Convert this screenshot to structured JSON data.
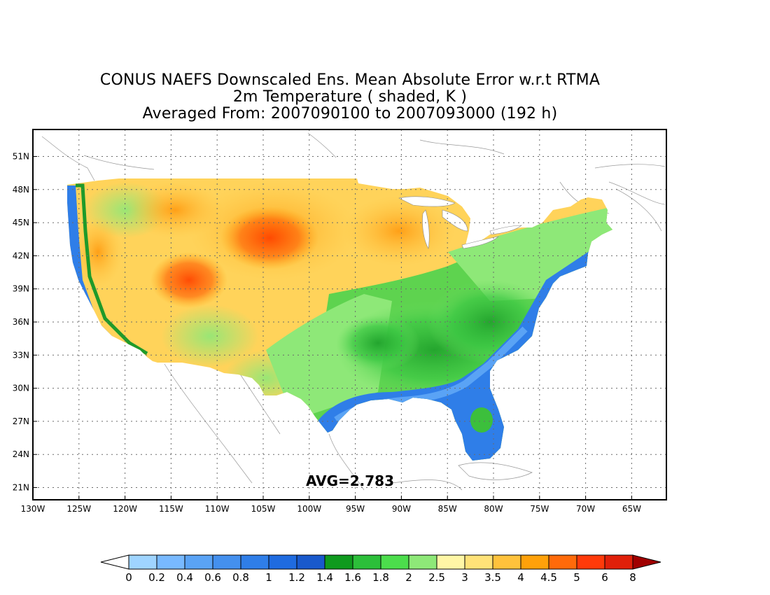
{
  "title": {
    "line1": "CONUS NAEFS Downscaled Ens. Mean Absolute Error w.r.t RTMA",
    "line2": "2m Temperature ( shaded, K )",
    "line3": "Averaged From: 2007090100 to 2007093000 (192 h)"
  },
  "annotation": "AVG=2.783",
  "map": {
    "lat_labels": [
      "51N",
      "48N",
      "45N",
      "42N",
      "39N",
      "36N",
      "33N",
      "30N",
      "27N",
      "24N",
      "21N"
    ],
    "lon_labels": [
      "130W",
      "125W",
      "120W",
      "115W",
      "110W",
      "105W",
      "100W",
      "95W",
      "90W",
      "85W",
      "80W",
      "75W",
      "70W",
      "65W"
    ]
  },
  "colorbar": {
    "labels": [
      "0",
      "0.2",
      "0.4",
      "0.6",
      "0.8",
      "1",
      "1.2",
      "1.4",
      "1.6",
      "1.8",
      "2",
      "2.5",
      "3",
      "3.5",
      "4",
      "4.5",
      "5",
      "6",
      "8"
    ],
    "under_color": "#ffffff",
    "over_color": "#a00000",
    "colors": [
      "#9fd4ff",
      "#78b9ff",
      "#5aa3f5",
      "#4490ee",
      "#2f7ee8",
      "#1f6be0",
      "#1959cc",
      "#0f9a1e",
      "#2cbf3a",
      "#4cdd4c",
      "#8ee878",
      "#fff6a6",
      "#ffe278",
      "#ffc23c",
      "#ffa10a",
      "#ff6a0a",
      "#ff3a0a",
      "#e0200a"
    ]
  }
}
